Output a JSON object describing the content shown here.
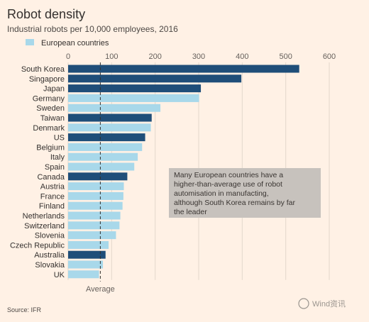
{
  "chart_data": {
    "type": "bar",
    "orientation": "horizontal",
    "title": "Robot density",
    "subtitle": "Industrial robots per 10,000 employees, 2016",
    "legend": [
      {
        "name": "European countries",
        "color": "#a8d8ea"
      }
    ],
    "legend_placement": "top-left",
    "categories": [
      "South Korea",
      "Singapore",
      "Japan",
      "Germany",
      "Sweden",
      "Taiwan",
      "Denmark",
      "US",
      "Belgium",
      "Italy",
      "Spain",
      "Canada",
      "Austria",
      "France",
      "Finland",
      "Netherlands",
      "Switzerland",
      "Slovenia",
      "Czech Republic",
      "Australia",
      "Slovakia",
      "UK"
    ],
    "values": [
      531,
      398,
      305,
      301,
      212,
      192,
      190,
      177,
      170,
      160,
      152,
      136,
      128,
      127,
      125,
      120,
      118,
      110,
      93,
      86,
      80,
      71
    ],
    "european": [
      false,
      false,
      false,
      true,
      true,
      false,
      true,
      false,
      true,
      true,
      true,
      false,
      true,
      true,
      true,
      true,
      true,
      true,
      true,
      false,
      true,
      true
    ],
    "colors": {
      "european": "#a8d8ea",
      "other": "#1f4e79",
      "average_line": "#33302e",
      "annotation_box": "#c7c2bd"
    },
    "xlim": [
      0,
      600
    ],
    "xticks": [
      0,
      100,
      200,
      300,
      400,
      500,
      600
    ],
    "grid": true,
    "average": {
      "value": 74,
      "label": "Average"
    },
    "annotation": [
      "Many European countries have a",
      "higher-than-average use of robot",
      "automisation in manufacting,",
      "although South Korea remains by far",
      "the leader"
    ]
  },
  "source": "Source: IFR",
  "watermark": "Wind资讯"
}
